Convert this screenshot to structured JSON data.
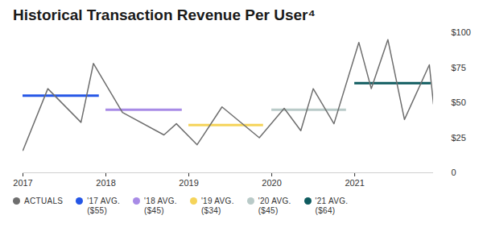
{
  "chart_data": {
    "type": "line",
    "title": "Historical Transaction Revenue Per User⁴",
    "xlim": [
      2017,
      2021.95
    ],
    "xticks": [
      2017,
      2018,
      2019,
      2020,
      2021
    ],
    "ylim": [
      0,
      100
    ],
    "yticks": [
      0,
      {
        "value": 25,
        "label": "$25"
      },
      {
        "value": 50,
        "label": "$50"
      },
      {
        "value": 75,
        "label": "$75"
      },
      {
        "value": 100,
        "label": "$100"
      }
    ],
    "grid": false,
    "legend": "bottom-left",
    "series": [
      {
        "name": "ACTUALS",
        "type": "line",
        "color": "#6e6e6e",
        "x": [
          2017.0,
          2017.3,
          2017.7,
          2017.85,
          2018.2,
          2018.7,
          2018.85,
          2019.1,
          2019.4,
          2019.85,
          2020.15,
          2020.35,
          2020.5,
          2020.75,
          2021.05,
          2021.2,
          2021.4,
          2021.6,
          2021.9,
          2021.95
        ],
        "values": [
          16,
          60,
          36,
          78,
          43,
          27,
          35,
          20,
          47,
          25,
          46,
          30,
          60,
          35,
          93,
          60,
          95,
          38,
          77,
          49
        ]
      },
      {
        "name": "'17 AVG.",
        "type": "rule",
        "color": "#2456e6",
        "x": [
          2017,
          2017.92
        ],
        "value": 55,
        "value_label": "($55)"
      },
      {
        "name": "'18 AVG.",
        "type": "rule",
        "color": "#a88be6",
        "x": [
          2018,
          2018.92
        ],
        "value": 45,
        "value_label": "($45)"
      },
      {
        "name": "'19 AVG.",
        "type": "rule",
        "color": "#f5d45a",
        "x": [
          2019,
          2019.9
        ],
        "value": 34,
        "value_label": "($34)"
      },
      {
        "name": "'20 AVG.",
        "type": "rule",
        "color": "#b9cac8",
        "x": [
          2020,
          2020.9
        ],
        "value": 45,
        "value_label": "($45)"
      },
      {
        "name": "'21 AVG.",
        "type": "rule",
        "color": "#0f5b5f",
        "x": [
          2021,
          2021.92
        ],
        "value": 64,
        "value_label": "($64)"
      }
    ]
  }
}
